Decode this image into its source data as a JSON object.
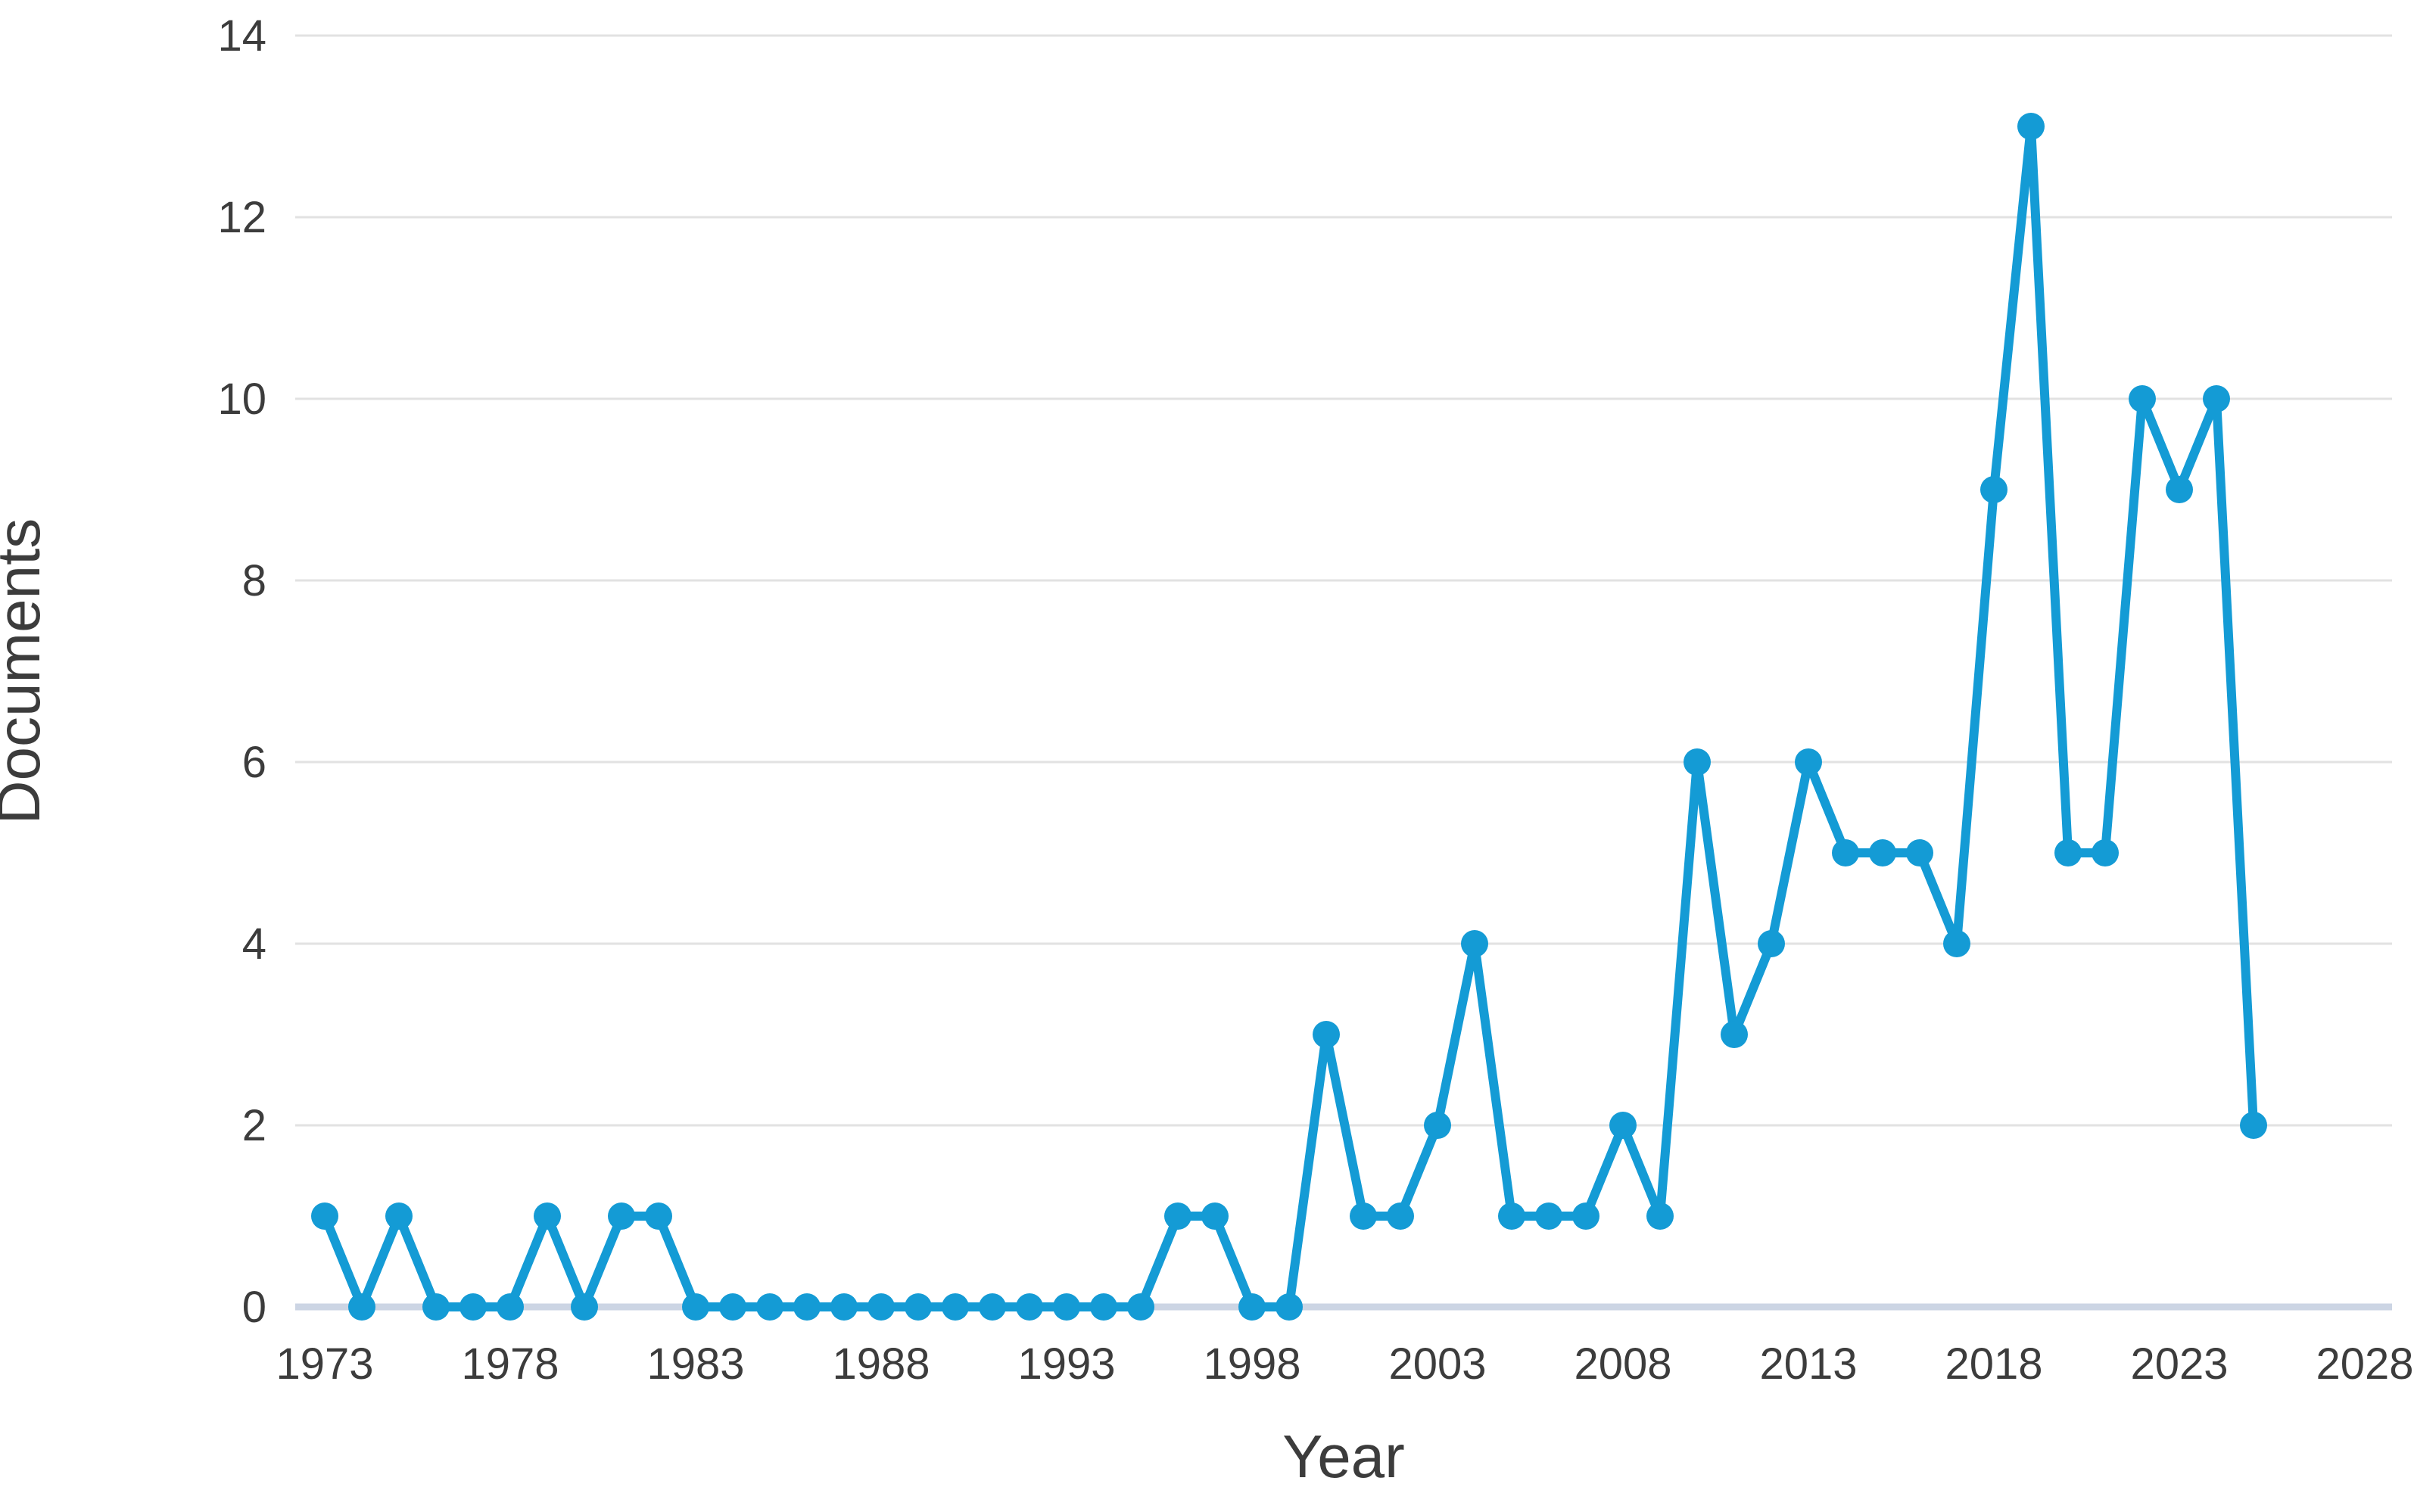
{
  "chart_data": {
    "type": "line",
    "title": "",
    "xlabel": "Year",
    "ylabel": "Documents",
    "series": [
      {
        "name": "Documents",
        "x": [
          1973,
          1974,
          1975,
          1976,
          1977,
          1978,
          1979,
          1980,
          1981,
          1982,
          1983,
          1984,
          1985,
          1986,
          1987,
          1988,
          1989,
          1990,
          1991,
          1992,
          1993,
          1994,
          1995,
          1996,
          1997,
          1998,
          1999,
          2000,
          2001,
          2002,
          2003,
          2004,
          2005,
          2006,
          2007,
          2008,
          2009,
          2010,
          2011,
          2012,
          2013,
          2014,
          2015,
          2016,
          2017,
          2018,
          2019,
          2020,
          2021,
          2022,
          2023,
          2024,
          2025
        ],
        "values": [
          1,
          0,
          1,
          0,
          0,
          0,
          1,
          0,
          1,
          1,
          0,
          0,
          0,
          0,
          0,
          0,
          0,
          0,
          0,
          0,
          0,
          0,
          0,
          1,
          1,
          0,
          0,
          3,
          1,
          1,
          2,
          4,
          1,
          1,
          1,
          2,
          1,
          6,
          3,
          4,
          6,
          5,
          5,
          5,
          4,
          9,
          13,
          5,
          5,
          10,
          9,
          10,
          2
        ]
      }
    ],
    "x_ticks": [
      1973,
      1978,
      1983,
      1988,
      1993,
      1998,
      2003,
      2008,
      2013,
      2018,
      2023,
      2028
    ],
    "y_ticks": [
      0,
      2,
      4,
      6,
      8,
      10,
      12,
      14
    ],
    "xlim": [
      1972.2,
      2028.7
    ],
    "ylim": [
      0,
      14
    ],
    "grid": "horizontal",
    "legend": "none",
    "marker": "circle",
    "line_color": "#149bd5",
    "grid_color": "#e2e2e2",
    "baseline_color": "#ccd5e4",
    "tick_label_color": "#3c3c3c",
    "axis_title_color": "#3c3c3c",
    "background_color": "#ffffff"
  }
}
